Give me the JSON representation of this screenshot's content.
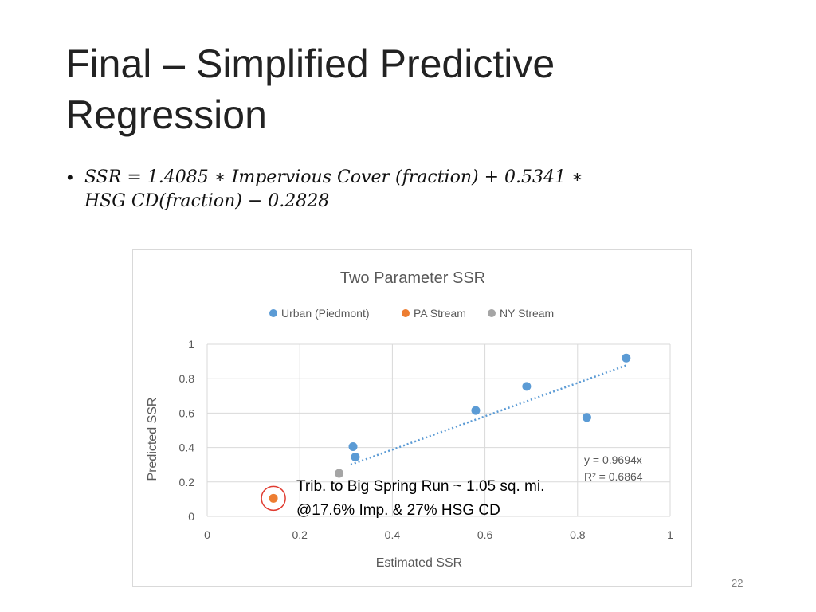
{
  "slide": {
    "title_lines": [
      "Final – Simplified Predictive",
      "Regression"
    ],
    "bullet_symbol": "•",
    "equation_lines": [
      "SSR = 1.4085 ∗ Impervious Cover (fraction) + 0.5341 ∗",
      "HSG CD(fraction) − 0.2828"
    ],
    "callout_lines": [
      "Trib. to Big Spring Run ~ 1.05 sq. mi.",
      "@17.6% Imp. & 27% HSG CD"
    ],
    "page_number": "22"
  },
  "chart_data": {
    "type": "scatter",
    "title": "Two Parameter SSR",
    "xlabel": "Estimated SSR",
    "ylabel": "Predicted SSR",
    "xlim": [
      0,
      1
    ],
    "ylim": [
      0,
      1
    ],
    "xticks": [
      "0",
      "0.2",
      "0.4",
      "0.6",
      "0.8",
      "1"
    ],
    "yticks": [
      "0",
      "0.2",
      "0.4",
      "0.6",
      "0.8",
      "1"
    ],
    "grid": true,
    "legend_position": "top",
    "series": [
      {
        "name": "Urban (Piedmont)",
        "color": "#5b9bd5",
        "points": [
          [
            0.315,
            0.405
          ],
          [
            0.32,
            0.345
          ],
          [
            0.58,
            0.615
          ],
          [
            0.69,
            0.755
          ],
          [
            0.82,
            0.575
          ],
          [
            0.905,
            0.92
          ]
        ]
      },
      {
        "name": "PA Stream",
        "color": "#ed7d31",
        "points": [
          [
            0.143,
            0.105
          ]
        ]
      },
      {
        "name": "NY Stream",
        "color": "#a5a5a5",
        "points": [
          [
            0.285,
            0.25
          ]
        ]
      }
    ],
    "trendline": {
      "type": "linear",
      "slope": 0.9694,
      "x_range": [
        0.31,
        0.905
      ],
      "color": "#5b9bd5",
      "equation_label": "y = 0.9694x",
      "r2_label": "R² = 0.6864"
    },
    "highlight": {
      "x": 0.143,
      "y": 0.105,
      "color": "#e03c31"
    }
  }
}
